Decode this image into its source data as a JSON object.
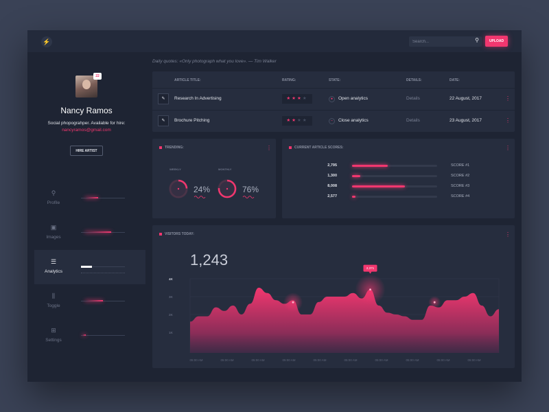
{
  "topbar": {
    "logo_glyph": "⚡",
    "search_placeholder": "Search...",
    "upload_label": "UPLOAD"
  },
  "profile": {
    "badge": "22",
    "name": "Nancy Ramos",
    "bio": "Social phopograhper. Available for hire:",
    "email": "nancyramos@gmail.com",
    "hire_label": "HIRE ARTIST"
  },
  "nav": [
    {
      "label": "Profile",
      "icon": "user-icon",
      "glyph": "⚲",
      "level": 0.3,
      "active": false
    },
    {
      "label": "Images",
      "icon": "image-icon",
      "glyph": "▣",
      "level": 0.6,
      "active": false
    },
    {
      "label": "Analytics",
      "icon": "analytics-icon",
      "glyph": "☰",
      "level": 0.25,
      "active": true
    },
    {
      "label": "Toggle",
      "icon": "toggle-icon",
      "glyph": "⫼",
      "level": 0.4,
      "active": false
    },
    {
      "label": "Settings",
      "icon": "settings-icon",
      "glyph": "⊞",
      "level": 0.08,
      "active": false
    }
  ],
  "quote": "Daily quotes: «Only photograph what you love». — Tim Walker",
  "articles": {
    "headers": {
      "title": "ARTICLE TITLE:",
      "rating": "RATING:",
      "state": "STATE:",
      "details": "DETAILS:",
      "date": "DATE:"
    },
    "rows": [
      {
        "title": "Research In Advertising",
        "stars": 3,
        "state_icon": "●",
        "state": "Open analytics",
        "details": "Details",
        "date": "22 August, 2017"
      },
      {
        "title": "Brochure Pitching",
        "stars": 2,
        "state_icon": "–",
        "state": "Close analytics",
        "details": "Details",
        "date": "23 August, 2017"
      }
    ]
  },
  "trending": {
    "title": "TRENDING:",
    "gauges": [
      {
        "label": "WEEKLY",
        "value": "24%",
        "fraction": 0.24
      },
      {
        "label": "MONTHLY",
        "value": "76%",
        "fraction": 0.76
      }
    ]
  },
  "scores": {
    "title": "CURRENT ARTICLE SCORES:",
    "items": [
      {
        "value": "2,795",
        "name": "SCORE #1",
        "fraction": 0.42
      },
      {
        "value": "1,300",
        "name": "SCORE #2",
        "fraction": 0.1
      },
      {
        "value": "8,008",
        "name": "SCORE #3",
        "fraction": 0.62
      },
      {
        "value": "2,577",
        "name": "SCORE #4",
        "fraction": 0.04
      }
    ]
  },
  "visitors": {
    "title": "VISITORS TODAY:",
    "total": "1,243",
    "tooltip": "2,371"
  },
  "chart_data": {
    "type": "area",
    "title": "VISITORS TODAY:",
    "ylim": [
      0,
      4000
    ],
    "y_ticks": [
      "4K",
      "3K",
      "2K",
      "1K"
    ],
    "x_ticks": [
      "05:00 AM",
      "05:00 AM",
      "05:00 AM",
      "05:00 AM",
      "05:00 AM",
      "05:00 AM",
      "05:00 AM",
      "05:00 AM",
      "05:00 AM",
      "05:00 AM"
    ],
    "x": [
      0,
      1,
      2,
      3,
      4,
      5,
      6,
      7,
      8,
      9,
      10,
      11,
      12,
      13,
      14,
      15,
      16,
      17,
      18,
      19,
      20,
      21,
      22,
      23,
      24,
      25,
      26,
      27,
      28,
      29,
      30,
      31,
      32,
      33,
      34,
      35,
      36
    ],
    "values": [
      1600,
      1900,
      1900,
      2400,
      2200,
      2500,
      2000,
      2600,
      3500,
      3200,
      2800,
      2600,
      2800,
      2000,
      2000,
      2700,
      3000,
      3000,
      3000,
      3200,
      2900,
      3400,
      2500,
      2100,
      2000,
      1900,
      1700,
      1700,
      2500,
      2400,
      2800,
      2800,
      3000,
      3200,
      2500,
      1900,
      2300
    ],
    "highlights": [
      {
        "x": 12,
        "value": 2800
      },
      {
        "x": 21,
        "value": 3400
      },
      {
        "x": 28.5,
        "value": 2800
      }
    ],
    "grid": true
  }
}
